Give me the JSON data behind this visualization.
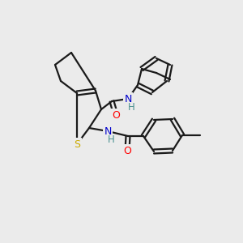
{
  "background_color": "#ebebeb",
  "bond_color": "#1a1a1a",
  "atom_colors": {
    "O": "#ff0000",
    "N": "#0000cc",
    "S": "#ccaa00",
    "H": "#4a9090",
    "C": "#1a1a1a"
  },
  "figsize": [
    3.0,
    3.0
  ],
  "dpi": 100
}
